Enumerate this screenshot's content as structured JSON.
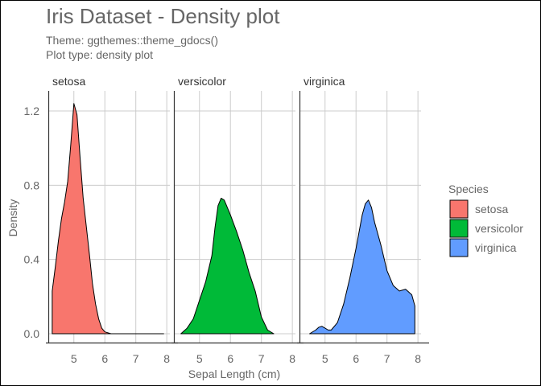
{
  "chart_data": {
    "type": "area",
    "title": "Iris Dataset - Density plot",
    "subtitle": [
      "Theme: ggthemes::theme_gdocs()",
      "Plot type: density plot"
    ],
    "xlabel": "Sepal Length (cm)",
    "ylabel": "Density",
    "ylim": [
      0,
      1.25
    ],
    "y_ticks": [
      0.0,
      0.4,
      0.8,
      1.2
    ],
    "y_tick_labels": [
      "0.0",
      "0.4",
      "0.8",
      "1.2"
    ],
    "legend": {
      "title": "Species",
      "position": "right",
      "entries": [
        {
          "label": "setosa",
          "color": "#F8766D"
        },
        {
          "label": "versicolor",
          "color": "#00BA38"
        },
        {
          "label": "virginica",
          "color": "#619CFF"
        }
      ]
    },
    "facets": [
      {
        "label": "setosa",
        "color": "#F8766D",
        "x_range": [
          4.2,
          8.1
        ],
        "x_ticks": [
          5,
          6,
          7,
          8
        ],
        "x": [
          4.3,
          4.4,
          4.5,
          4.6,
          4.7,
          4.8,
          4.9,
          5.0,
          5.1,
          5.2,
          5.3,
          5.4,
          5.5,
          5.6,
          5.7,
          5.8,
          5.9,
          6.0,
          6.2,
          6.6,
          7.0,
          7.5,
          7.9
        ],
        "y": [
          0.23,
          0.36,
          0.5,
          0.62,
          0.71,
          0.82,
          1.02,
          1.24,
          1.18,
          0.95,
          0.73,
          0.58,
          0.43,
          0.27,
          0.16,
          0.08,
          0.03,
          0.01,
          0.0,
          0.0,
          0.0,
          0.0,
          0.0
        ]
      },
      {
        "label": "versicolor",
        "color": "#00BA38",
        "x_range": [
          4.2,
          8.1
        ],
        "x_ticks": [
          5,
          6,
          7,
          8
        ],
        "x": [
          4.4,
          4.6,
          4.8,
          5.0,
          5.2,
          5.4,
          5.5,
          5.6,
          5.7,
          5.8,
          6.0,
          6.2,
          6.4,
          6.6,
          6.8,
          7.0,
          7.2,
          7.4
        ],
        "y": [
          0.0,
          0.03,
          0.08,
          0.18,
          0.28,
          0.42,
          0.57,
          0.69,
          0.73,
          0.72,
          0.64,
          0.55,
          0.45,
          0.33,
          0.23,
          0.09,
          0.02,
          0.0
        ]
      },
      {
        "label": "virginica",
        "color": "#619CFF",
        "x_range": [
          4.2,
          8.1
        ],
        "x_ticks": [
          5,
          6,
          7,
          8
        ],
        "x": [
          4.5,
          4.7,
          4.8,
          4.9,
          5.0,
          5.1,
          5.2,
          5.4,
          5.6,
          5.8,
          6.0,
          6.1,
          6.2,
          6.3,
          6.4,
          6.5,
          6.6,
          6.8,
          7.0,
          7.2,
          7.4,
          7.6,
          7.8,
          7.9
        ],
        "y": [
          0.0,
          0.02,
          0.035,
          0.04,
          0.03,
          0.02,
          0.02,
          0.06,
          0.16,
          0.3,
          0.46,
          0.55,
          0.64,
          0.7,
          0.72,
          0.68,
          0.6,
          0.48,
          0.34,
          0.26,
          0.23,
          0.24,
          0.21,
          0.15
        ]
      }
    ]
  }
}
